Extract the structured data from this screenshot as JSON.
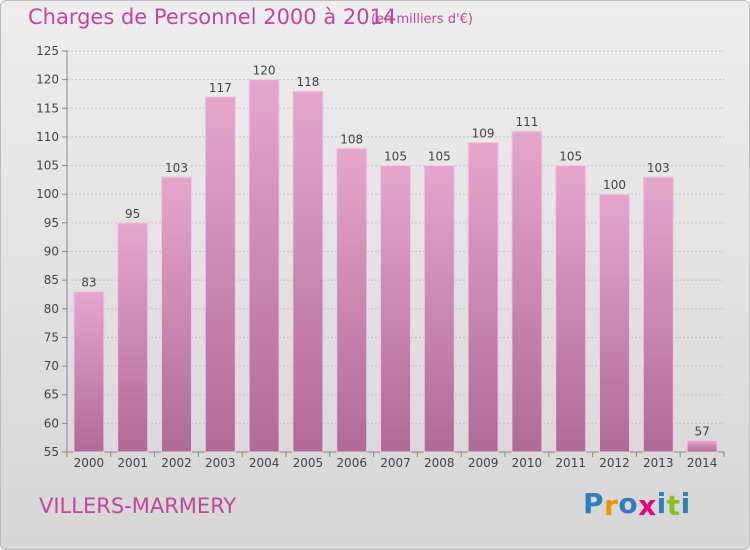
{
  "header": {
    "title": "Charges de Personnel 2000 à 2014",
    "subtitle": "(en milliers d'€)"
  },
  "footer": {
    "town": "VILLERS-MARMERY",
    "logo": [
      "P",
      "r",
      "o",
      "x",
      "i",
      "t",
      "i"
    ],
    "logo_colors": [
      "#2e7fc0",
      "#f39200",
      "#2e7fc0",
      "#e5007e",
      "#2e7fc0",
      "#8cbf26",
      "#2e7fc0"
    ]
  },
  "chart_data": {
    "type": "bar",
    "title": "Charges de Personnel 2000 à 2014",
    "subtitle": "(en milliers d'€)",
    "categories": [
      "2000",
      "2001",
      "2002",
      "2003",
      "2004",
      "2005",
      "2006",
      "2007",
      "2008",
      "2009",
      "2010",
      "2011",
      "2012",
      "2013",
      "2014"
    ],
    "values": [
      83,
      95,
      103,
      117,
      120,
      118,
      108,
      105,
      105,
      109,
      111,
      105,
      100,
      103,
      57
    ],
    "ylim": [
      55,
      125
    ],
    "yticks": [
      55,
      60,
      65,
      70,
      75,
      80,
      85,
      90,
      95,
      100,
      105,
      110,
      115,
      120,
      125
    ],
    "grid": true,
    "bar_color": "#d27fb2",
    "xlabel": "",
    "ylabel": ""
  }
}
